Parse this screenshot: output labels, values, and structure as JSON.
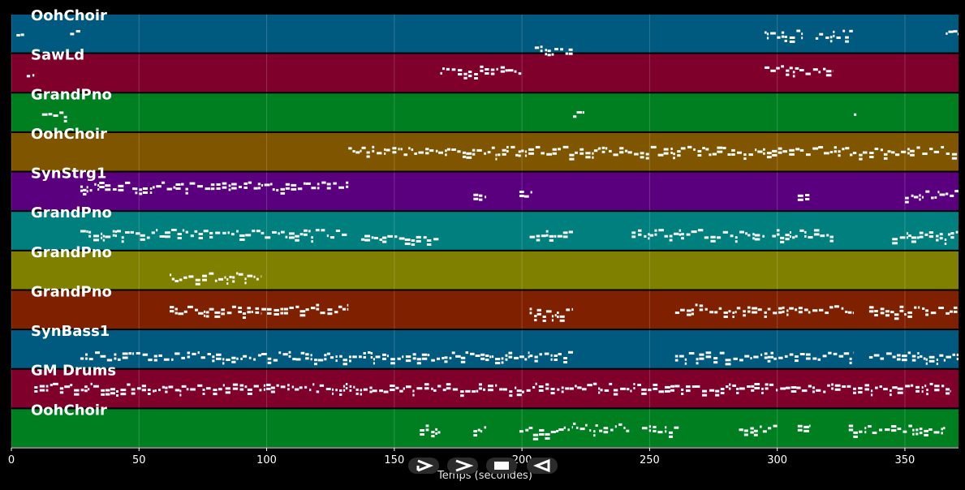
{
  "chart_data": {
    "type": "piano-roll",
    "xlabel": "Temps (secondes)",
    "xlim": [
      0,
      371
    ],
    "xticks": [
      0,
      50,
      100,
      150,
      200,
      250,
      300,
      350
    ],
    "grid": true,
    "tracks": [
      {
        "name": "OohChoir",
        "color": "#005a80",
        "notes": [
          [
            2,
            5,
            0.5
          ],
          [
            23,
            27,
            0.5
          ],
          [
            205,
            220,
            0.9
          ],
          [
            295,
            310,
            0.5
          ],
          [
            315,
            330,
            0.5
          ],
          [
            366,
            371,
            0.5
          ]
        ]
      },
      {
        "name": "SawLd",
        "color": "#7f002b",
        "notes": [
          [
            6,
            9,
            0.5
          ],
          [
            168,
            200,
            0.4
          ],
          [
            295,
            322,
            0.4
          ]
        ]
      },
      {
        "name": "GrandPno",
        "color": "#007f21",
        "notes": [
          [
            12,
            22,
            0.5
          ],
          [
            220,
            225,
            0.5
          ],
          [
            330,
            331,
            0.5
          ]
        ]
      },
      {
        "name": "OohChoir",
        "color": "#7f5500",
        "notes": [
          [
            132,
            230,
            0.45
          ],
          [
            230,
            371,
            0.45
          ]
        ]
      },
      {
        "name": "SynStrg1",
        "color": "#5a007f",
        "notes": [
          [
            27,
            132,
            0.35
          ],
          [
            181,
            186,
            0.55
          ],
          [
            199,
            204,
            0.55
          ],
          [
            308,
            313,
            0.55
          ],
          [
            350,
            371,
            0.55
          ]
        ]
      },
      {
        "name": "GrandPno",
        "color": "#007f7f",
        "notes": [
          [
            27,
            132,
            0.55
          ],
          [
            137,
            168,
            0.7
          ],
          [
            203,
            220,
            0.55
          ],
          [
            243,
            295,
            0.55
          ],
          [
            298,
            322,
            0.55
          ],
          [
            345,
            371,
            0.6
          ]
        ]
      },
      {
        "name": "GrandPno",
        "color": "#7f7f00",
        "notes": [
          [
            62,
            98,
            0.65
          ]
        ]
      },
      {
        "name": "GrandPno",
        "color": "#7f2100",
        "notes": [
          [
            62,
            98,
            0.5
          ],
          [
            98,
            132,
            0.45
          ],
          [
            203,
            220,
            0.55
          ],
          [
            260,
            330,
            0.45
          ],
          [
            336,
            371,
            0.5
          ]
        ]
      },
      {
        "name": "SynBass1",
        "color": "#005a80",
        "notes": [
          [
            27,
            203,
            0.65
          ],
          [
            203,
            220,
            0.6
          ],
          [
            260,
            330,
            0.65
          ],
          [
            336,
            371,
            0.65
          ]
        ]
      },
      {
        "name": "GM Drums",
        "color": "#7f002b",
        "notes": [
          [
            9,
            368,
            0.45
          ]
        ]
      },
      {
        "name": "OohChoir",
        "color": "#007f21",
        "notes": [
          [
            160,
            168,
            0.5
          ],
          [
            181,
            186,
            0.5
          ],
          [
            199,
            220,
            0.55
          ],
          [
            220,
            242,
            0.45
          ],
          [
            247,
            262,
            0.5
          ],
          [
            285,
            300,
            0.5
          ],
          [
            308,
            313,
            0.5
          ],
          [
            328,
            366,
            0.5
          ]
        ]
      }
    ]
  },
  "controls": [
    {
      "name": "play-button",
      "icon": "play-icon"
    },
    {
      "name": "next-button",
      "icon": "chevron-right-icon"
    },
    {
      "name": "stop-button",
      "icon": "stop-icon"
    },
    {
      "name": "back-button",
      "icon": "chevron-left-icon"
    }
  ]
}
